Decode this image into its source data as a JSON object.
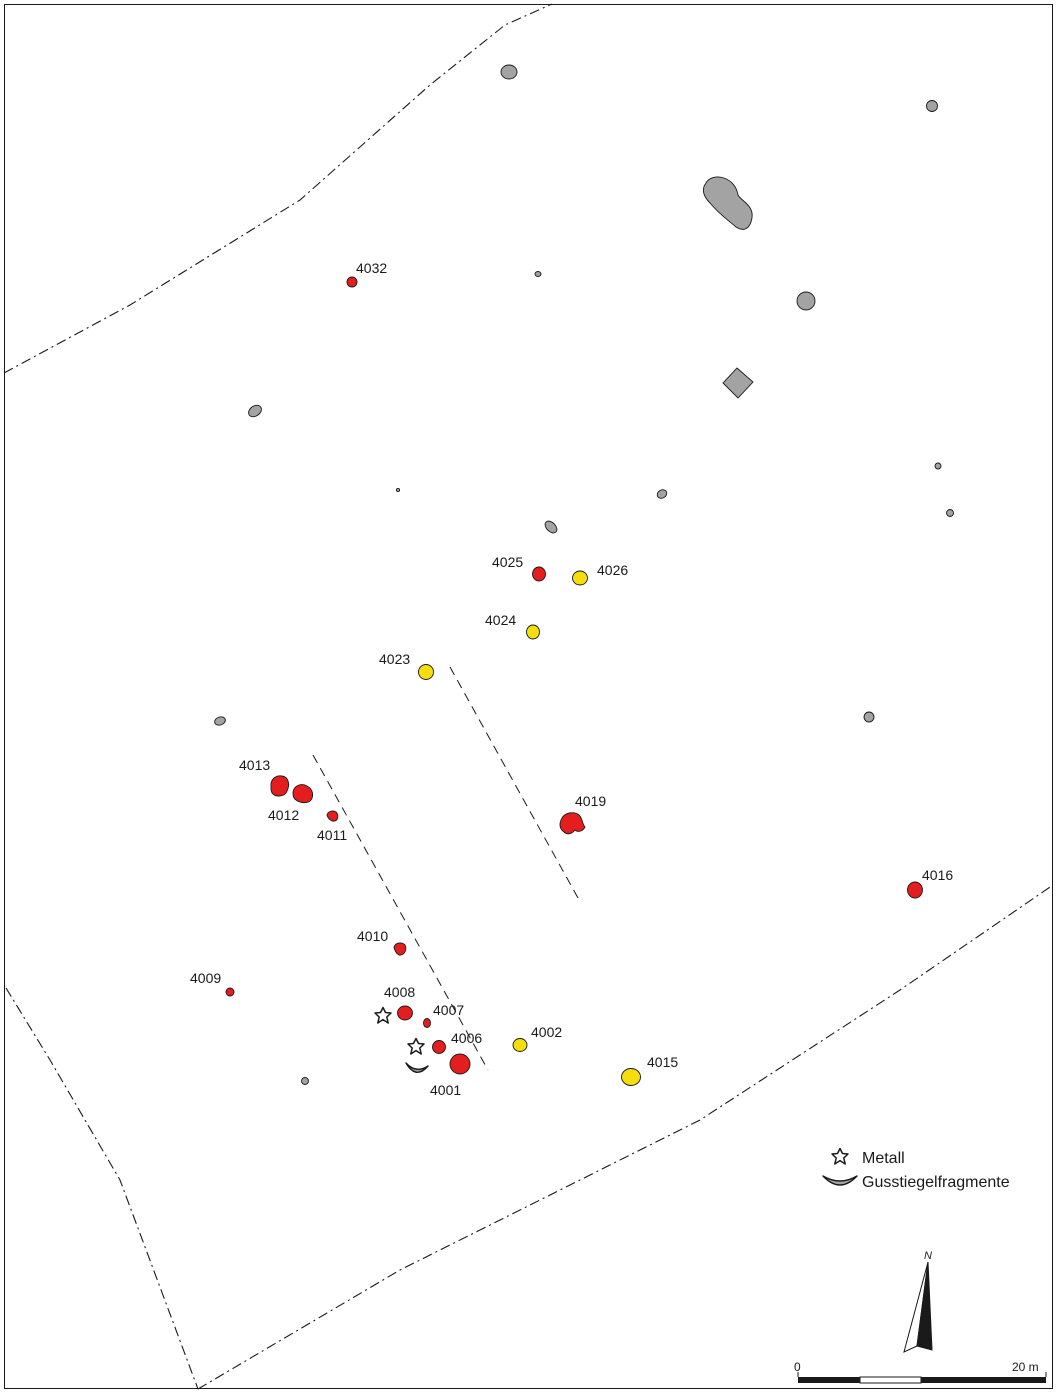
{
  "colors": {
    "red_feature": "#e41e1e",
    "yellow_feature": "#f5dd0e",
    "grey_feature": "#a3a3a3",
    "outline": "#1a1a1a"
  },
  "features": {
    "4001": "4001",
    "4002": "4002",
    "4006": "4006",
    "4007": "4007",
    "4008": "4008",
    "4009": "4009",
    "4010": "4010",
    "4011": "4011",
    "4012": "4012",
    "4013": "4013",
    "4015": "4015",
    "4016": "4016",
    "4019": "4019",
    "4023": "4023",
    "4024": "4024",
    "4025": "4025",
    "4026": "4026",
    "4032": "4032"
  },
  "legend": {
    "metal": "Metall",
    "metal_icon": "star-icon",
    "crucible": "Gusstiegelfragmente",
    "crucible_icon": "crucible-fragment-icon"
  },
  "north_arrow": {
    "label": "N"
  },
  "scale_bar": {
    "start": "0",
    "end": "20 m"
  }
}
